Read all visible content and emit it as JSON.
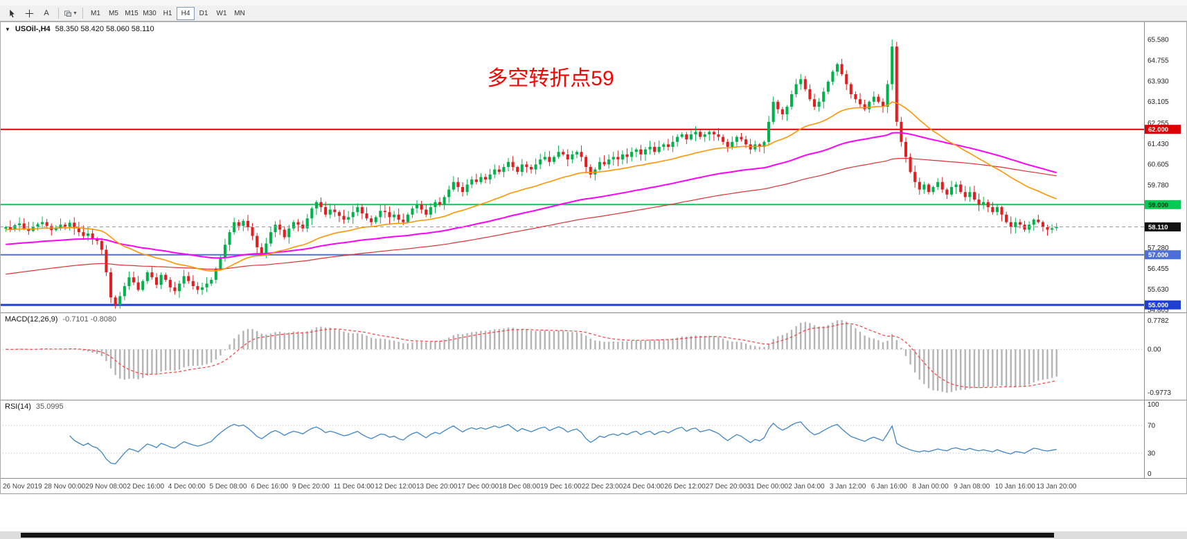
{
  "toolbar": {
    "text_tool_label": "A",
    "timeframes": [
      "M1",
      "M5",
      "M15",
      "M30",
      "H1",
      "H4",
      "D1",
      "W1",
      "MN"
    ],
    "active_timeframe": "H4"
  },
  "chart_data": {
    "type": "candlestick",
    "symbol": "USOil-,H4",
    "last_ohlc": "58.350 58.420 58.060 58.110",
    "annotation": {
      "text": "多空转折点59",
      "color": "#ff0000"
    },
    "price_range": [
      54.7,
      66.3
    ],
    "price_axis_labels": [
      "65.580",
      "64.755",
      "63.930",
      "63.105",
      "62.255",
      "61.430",
      "60.605",
      "59.780",
      "57.280",
      "56.455",
      "55.630",
      "54.805"
    ],
    "current_price": 58.11,
    "current_price_label": "58.110",
    "spike_high": 65.58,
    "colors": {
      "up": "#00b24a",
      "down": "#e02020",
      "macd_bars": "#b4b4b4",
      "macd_signal": "#ff3b3b",
      "rsi_line": "#3d85c6"
    },
    "levels": [
      {
        "price": 62.0,
        "label": "62.000",
        "color": "#dd0000",
        "width": 2,
        "text_color": "#ffffff"
      },
      {
        "price": 59.0,
        "label": "59.000",
        "color": "#00cc55",
        "width": 2,
        "text_color": "#00330f"
      },
      {
        "price": 57.0,
        "label": "57.000",
        "color": "#4f6fd8",
        "width": 2,
        "text_color": "#ffffff"
      },
      {
        "price": 55.0,
        "label": "55.000",
        "color": "#1f3fd0",
        "width": 3,
        "text_color": "#ffffff"
      }
    ],
    "mas": [
      {
        "name": "ma-slow-red",
        "period": 150,
        "seed": 56.2,
        "color": "#dd3333",
        "width": 1.2
      },
      {
        "name": "ma-mid-magenta",
        "period": 90,
        "seed": 57.4,
        "color": "#ff00ff",
        "width": 2
      },
      {
        "name": "ma-fast-orange",
        "period": 34,
        "seed": 58.0,
        "color": "#ff9500",
        "width": 1.6
      }
    ],
    "closes": [
      58.1,
      58.0,
      58.18,
      58.25,
      58.05,
      57.95,
      58.12,
      58.22,
      58.3,
      58.15,
      57.98,
      58.08,
      58.2,
      58.12,
      58.28,
      58.05,
      57.9,
      57.75,
      57.85,
      57.65,
      57.55,
      57.2,
      56.3,
      55.3,
      55.0,
      55.35,
      55.75,
      56.1,
      55.9,
      55.6,
      55.95,
      56.3,
      56.1,
      55.8,
      56.2,
      56.0,
      55.7,
      55.55,
      55.85,
      56.15,
      55.95,
      55.75,
      55.6,
      55.7,
      55.85,
      56.0,
      56.45,
      56.9,
      57.4,
      57.9,
      58.3,
      58.15,
      58.35,
      58.1,
      57.75,
      57.3,
      57.05,
      57.45,
      57.9,
      58.2,
      58.0,
      57.7,
      58.05,
      58.3,
      58.2,
      58.05,
      58.45,
      58.85,
      59.1,
      58.9,
      58.6,
      58.8,
      58.7,
      58.55,
      58.4,
      58.5,
      58.7,
      58.9,
      58.65,
      58.45,
      58.3,
      58.5,
      58.75,
      58.7,
      58.5,
      58.6,
      58.4,
      58.3,
      58.6,
      58.85,
      59.0,
      58.8,
      58.6,
      58.9,
      59.1,
      59.0,
      59.3,
      59.6,
      59.9,
      59.7,
      59.5,
      59.8,
      60.0,
      59.9,
      60.1,
      60.0,
      60.2,
      60.4,
      60.3,
      60.5,
      60.7,
      60.5,
      60.3,
      60.6,
      60.5,
      60.4,
      60.6,
      60.8,
      60.9,
      60.7,
      60.9,
      61.1,
      61.0,
      60.8,
      61.0,
      61.1,
      60.9,
      60.5,
      60.2,
      60.4,
      60.7,
      60.6,
      60.8,
      60.9,
      60.8,
      61.0,
      60.9,
      61.1,
      61.2,
      61.0,
      61.2,
      61.3,
      61.1,
      61.3,
      61.4,
      61.3,
      61.5,
      61.7,
      61.8,
      61.6,
      61.8,
      61.9,
      61.7,
      61.8,
      61.9,
      61.8,
      61.7,
      61.5,
      61.3,
      61.5,
      61.7,
      61.6,
      61.4,
      61.2,
      61.4,
      61.3,
      61.5,
      62.3,
      63.1,
      62.8,
      62.6,
      62.9,
      63.4,
      63.8,
      64.0,
      63.6,
      63.2,
      62.9,
      63.1,
      63.5,
      63.9,
      64.3,
      64.6,
      64.2,
      63.8,
      63.4,
      63.2,
      63.0,
      62.8,
      63.1,
      63.3,
      63.1,
      62.9,
      63.8,
      65.3,
      62.3,
      61.5,
      60.9,
      60.3,
      59.9,
      59.6,
      59.8,
      59.5,
      59.7,
      59.9,
      59.6,
      59.4,
      59.7,
      59.8,
      59.5,
      59.3,
      59.5,
      59.2,
      59.0,
      59.1,
      58.9,
      58.7,
      58.9,
      58.6,
      58.3,
      58.1,
      58.3,
      58.2,
      58.0,
      58.2,
      58.4,
      58.3,
      58.1,
      58.0,
      58.06,
      58.11
    ],
    "time_labels": [
      "26 Nov 2019",
      "28 Nov 00:00",
      "29 Nov 08:00",
      "2 Dec 16:00",
      "4 Dec 00:00",
      "5 Dec 08:00",
      "6 Dec 16:00",
      "9 Dec 20:00",
      "11 Dec 04:00",
      "12 Dec 12:00",
      "13 Dec 20:00",
      "17 Dec 00:00",
      "18 Dec 08:00",
      "19 Dec 16:00",
      "22 Dec 23:00",
      "24 Dec 04:00",
      "26 Dec 12:00",
      "27 Dec 20:00",
      "31 Dec 00:00",
      "2 Jan 04:00",
      "3 Jan 12:00",
      "6 Jan 16:00",
      "8 Jan 00:00",
      "9 Jan 08:00",
      "10 Jan 16:00",
      "13 Jan 20:00"
    ],
    "indicators": {
      "macd": {
        "label": "MACD(12,26,9)",
        "values": "-0.7101 -0.8080",
        "params": [
          12,
          26,
          9
        ],
        "axis_labels": [
          "0.7782",
          "0.00",
          "-0.9773"
        ]
      },
      "rsi": {
        "label": "RSI(14)",
        "value": "35.0995",
        "period": 14,
        "levels": [
          30,
          70
        ],
        "axis_labels": [
          "100",
          "70",
          "30",
          "0"
        ]
      }
    }
  }
}
